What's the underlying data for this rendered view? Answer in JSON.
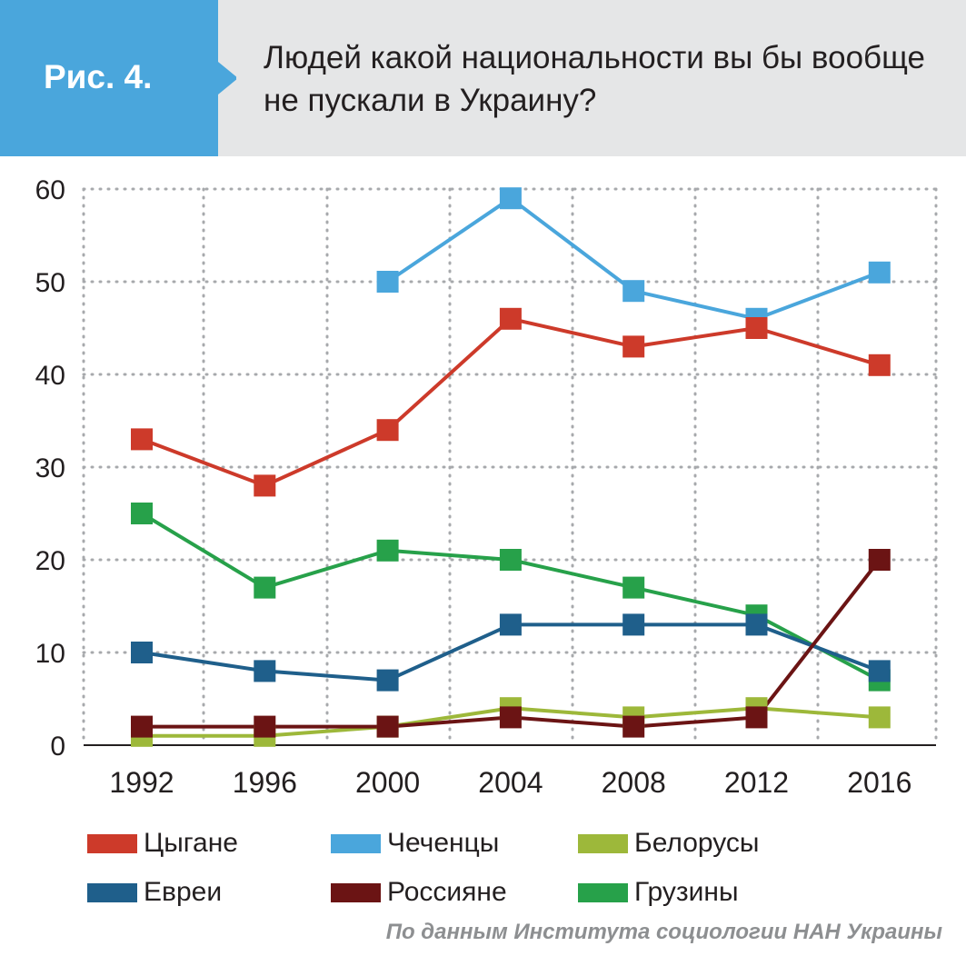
{
  "figure": {
    "badge": "Рис. 4.",
    "title": "Людей какой национальности вы бы вообще не пускали в Украину?",
    "source": "По данным Института социологии НАН Украины",
    "colors": {
      "header_bg": "#e5e6e7",
      "badge_bg": "#4aa6dc",
      "grid": "#a7a9ac",
      "axis": "#231f20"
    }
  },
  "chart_data": {
    "type": "line",
    "title": "Людей какой национальности вы бы вообще не пускали в Украину?",
    "xlabel": "",
    "ylabel": "",
    "categories": [
      "1992",
      "1996",
      "2000",
      "2004",
      "2008",
      "2012",
      "2016"
    ],
    "ylim": [
      0,
      60
    ],
    "yticks": [
      0,
      10,
      20,
      30,
      40,
      50,
      60
    ],
    "grid": true,
    "legend_position": "bottom",
    "series": [
      {
        "name": "Цыгане",
        "color": "#cd3a2a",
        "values": [
          33,
          28,
          34,
          46,
          43,
          45,
          41
        ]
      },
      {
        "name": "Чеченцы",
        "color": "#4aa6dc",
        "values": [
          null,
          null,
          50,
          59,
          49,
          46,
          51
        ]
      },
      {
        "name": "Белорусы",
        "color": "#9db83a",
        "values": [
          1,
          1,
          2,
          4,
          3,
          4,
          3
        ]
      },
      {
        "name": "Евреи",
        "color": "#1f5f8b",
        "values": [
          10,
          8,
          7,
          13,
          13,
          13,
          8
        ]
      },
      {
        "name": "Россияне",
        "color": "#6b1414",
        "values": [
          2,
          2,
          2,
          3,
          2,
          3,
          20
        ]
      },
      {
        "name": "Грузины",
        "color": "#27a14a",
        "values": [
          25,
          17,
          21,
          20,
          17,
          14,
          7
        ]
      }
    ]
  }
}
